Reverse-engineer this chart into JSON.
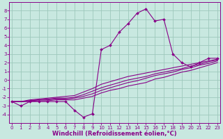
{
  "xlabel": "Windchill (Refroidissement éolien,°C)",
  "background_color": "#c8e8e0",
  "grid_color": "#9ec8bc",
  "line_color": "#880088",
  "hours": [
    0,
    1,
    2,
    3,
    4,
    5,
    6,
    7,
    8,
    9,
    10,
    11,
    12,
    13,
    14,
    15,
    16,
    17,
    18,
    19,
    20,
    21,
    22,
    23
  ],
  "curve_main": [
    -2.5,
    -3.0,
    -2.5,
    -2.5,
    -2.5,
    -2.5,
    -2.5,
    -3.5,
    -4.3,
    -3.9,
    3.5,
    4.0,
    5.5,
    6.5,
    7.7,
    8.2,
    6.8,
    7.0,
    3.0,
    2.0,
    1.5,
    2.0,
    2.5,
    2.5
  ],
  "line_a": [
    -2.5,
    -2.5,
    -2.3,
    -2.2,
    -2.1,
    -2.0,
    -1.9,
    -1.8,
    -1.4,
    -1.0,
    -0.5,
    -0.2,
    0.1,
    0.4,
    0.6,
    0.8,
    1.0,
    1.2,
    1.4,
    1.6,
    1.8,
    2.0,
    2.2,
    2.4
  ],
  "line_b": [
    -2.5,
    -2.5,
    -2.4,
    -2.3,
    -2.2,
    -2.1,
    -2.1,
    -2.0,
    -1.7,
    -1.3,
    -0.9,
    -0.6,
    -0.3,
    0.0,
    0.2,
    0.4,
    0.7,
    0.9,
    1.1,
    1.3,
    1.6,
    1.8,
    2.1,
    2.3
  ],
  "line_c": [
    -2.5,
    -2.5,
    -2.4,
    -2.3,
    -2.3,
    -2.2,
    -2.2,
    -2.1,
    -1.9,
    -1.6,
    -1.2,
    -0.9,
    -0.6,
    -0.3,
    -0.1,
    0.2,
    0.5,
    0.7,
    0.9,
    1.2,
    1.4,
    1.7,
    1.9,
    2.2
  ],
  "line_d": [
    -2.5,
    -2.5,
    -2.5,
    -2.4,
    -2.4,
    -2.3,
    -2.3,
    -2.3,
    -2.1,
    -1.9,
    -1.5,
    -1.2,
    -1.0,
    -0.7,
    -0.5,
    -0.3,
    0.1,
    0.3,
    0.6,
    0.9,
    1.1,
    1.4,
    1.7,
    2.0
  ],
  "ylim": [
    -5,
    9
  ],
  "xlim_min": -0.3,
  "xlim_max": 23.3,
  "yticks": [
    -4,
    -3,
    -2,
    -1,
    0,
    1,
    2,
    3,
    4,
    5,
    6,
    7,
    8
  ],
  "xticks": [
    0,
    1,
    2,
    3,
    4,
    5,
    6,
    7,
    8,
    9,
    10,
    11,
    12,
    13,
    14,
    15,
    16,
    17,
    18,
    19,
    20,
    21,
    22,
    23
  ],
  "marker": "D",
  "marker_size": 2.0,
  "line_width": 0.8,
  "font_size": 5.0,
  "xlabel_font_size": 6.0
}
